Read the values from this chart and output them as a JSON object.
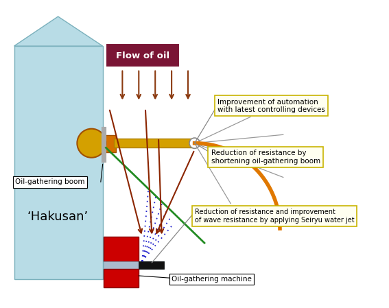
{
  "ship_body_color": "#b8dce6",
  "ship_edge_color": "#7ab0bc",
  "flow_box_color": "#7a1535",
  "flow_box_text": "Flow of oil",
  "oil_arrow_color": "#8b3a10",
  "label1_text": "Improvement of automation\nwith latest controlling devices",
  "label2_text": "Reduction of resistance by\nshortening oil-gathering boom",
  "label3_text": "Reduction of resistance and improvement\nof wave resistance by applying Seiryu water jet",
  "label4_text": "Oil-gathering machine",
  "label5_text": "Oil-gathering boom",
  "hakusan_text": "‘Hakusan’",
  "label_bg": "#fffff0",
  "label_border": "#c8b400",
  "arm_color": "#d4a000",
  "orange_line_color": "#e07800",
  "green_line_color": "#228B22",
  "dark_red_color": "#8b2500",
  "blue_dot_color": "#2222cc",
  "red_block_color": "#cc0000",
  "black_block_color": "#111111",
  "gray_block_color": "#aabbcc",
  "gray_line_color": "#999999"
}
